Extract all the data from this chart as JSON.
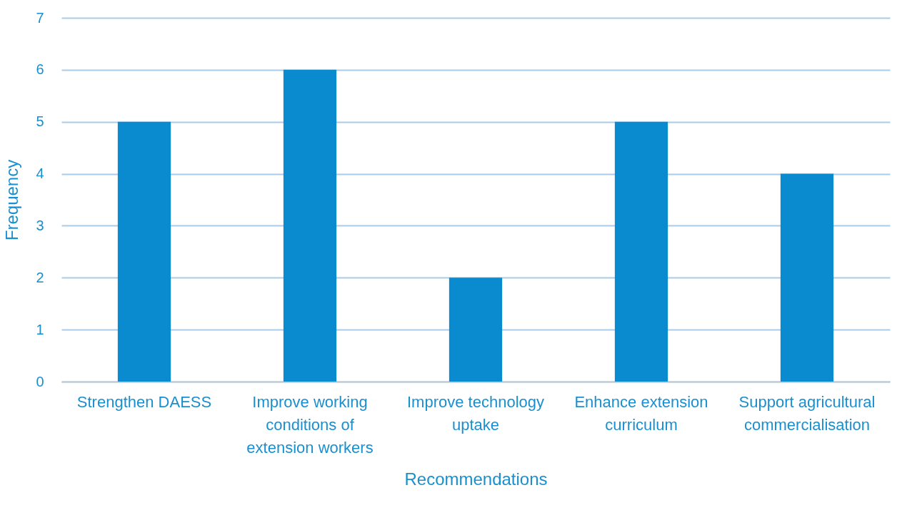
{
  "chart_data": {
    "type": "bar",
    "xlabel": "Recommendations",
    "ylabel": "Frequency",
    "categories": [
      "Strengthen DAESS",
      "Improve working conditions of extension workers",
      "Improve technology uptake",
      "Enhance extension curriculum",
      "Support agricultural commercialisation"
    ],
    "values": [
      5,
      6,
      2,
      5,
      4
    ],
    "color": "#0a8bd0",
    "ylim": [
      0,
      7
    ],
    "yticks": [
      0,
      1,
      2,
      3,
      4,
      5,
      6,
      7
    ],
    "grid": "y"
  }
}
